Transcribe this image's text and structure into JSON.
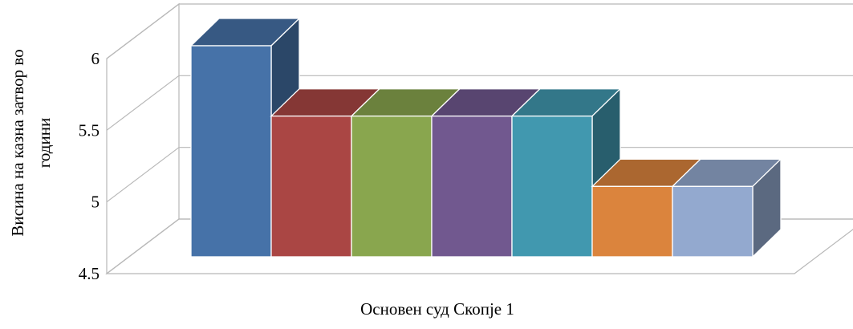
{
  "chart_data": {
    "type": "bar",
    "bar_style": "3d-clustered",
    "categories": [
      "Основен суд Скопје 1"
    ],
    "series": [
      {
        "values": [
          6.0
        ],
        "color": "#4672A8"
      },
      {
        "values": [
          5.5
        ],
        "color": "#AA4644"
      },
      {
        "values": [
          5.5
        ],
        "color": "#89A64E"
      },
      {
        "values": [
          5.5
        ],
        "color": "#71588F"
      },
      {
        "values": [
          5.5
        ],
        "color": "#4198AF"
      },
      {
        "values": [
          5.0
        ],
        "color": "#DB843D"
      },
      {
        "values": [
          5.0
        ],
        "color": "#93A9CF"
      }
    ],
    "ylabel_lines": [
      "Висина на казна затвор во",
      "години"
    ],
    "xlabel": "Основен суд Скопје 1",
    "ylim": [
      4.5,
      6.0
    ],
    "yticks": [
      "4.5",
      "5",
      "5.5",
      "6"
    ],
    "grid": true,
    "legend": "none"
  }
}
